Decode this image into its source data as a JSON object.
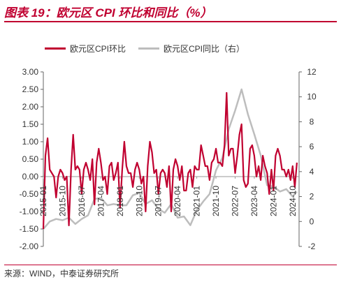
{
  "figure": {
    "title": "图表 19：欧元区 CPI 环比和同比（%）",
    "source": "来源：WIND，中泰证券研究所"
  },
  "colors": {
    "mom": "#c00030",
    "yoy": "#bdbdbd",
    "axis": "#666666",
    "title": "#c00030"
  },
  "chart_data": {
    "type": "line",
    "title": "",
    "xlabel": "",
    "ylabel": "",
    "legend_position": "top",
    "grid": false,
    "x_range": [
      "2015-01",
      "2025-01"
    ],
    "xticks": [
      "2015-01",
      "2015-10",
      "2016-07",
      "2017-04",
      "2018-01",
      "2018-10",
      "2019-07",
      "2020-04",
      "2021-01",
      "2021-10",
      "2022-07",
      "2023-04",
      "2024-01",
      "2024-10"
    ],
    "yticks_left": [
      "3.00",
      "2.50",
      "2.00",
      "1.50",
      "1.00",
      "0.50",
      "0.00",
      "-0.50",
      "-1.00",
      "-1.50",
      "-2.00"
    ],
    "yticks_right": [
      "12",
      "10",
      "8",
      "6",
      "4",
      "2",
      "0",
      "-2"
    ],
    "ylim_left": [
      -2,
      3
    ],
    "ylim_right": [
      -2,
      12
    ],
    "series": [
      {
        "name": "欧元区CPI环比",
        "axis": "left",
        "x": [
          "2015-01",
          "2015-02",
          "2015-03",
          "2015-04",
          "2015-05",
          "2015-06",
          "2015-07",
          "2015-08",
          "2015-09",
          "2015-10",
          "2015-11",
          "2015-12",
          "2016-01",
          "2016-02",
          "2016-03",
          "2016-04",
          "2016-05",
          "2016-06",
          "2016-07",
          "2016-08",
          "2016-09",
          "2016-10",
          "2016-11",
          "2016-12",
          "2017-01",
          "2017-02",
          "2017-03",
          "2017-04",
          "2017-05",
          "2017-06",
          "2017-07",
          "2017-08",
          "2017-09",
          "2017-10",
          "2017-11",
          "2017-12",
          "2018-01",
          "2018-02",
          "2018-03",
          "2018-04",
          "2018-05",
          "2018-06",
          "2018-07",
          "2018-08",
          "2018-09",
          "2018-10",
          "2018-11",
          "2018-12",
          "2019-01",
          "2019-02",
          "2019-03",
          "2019-04",
          "2019-05",
          "2019-06",
          "2019-07",
          "2019-08",
          "2019-09",
          "2019-10",
          "2019-11",
          "2019-12",
          "2020-01",
          "2020-02",
          "2020-03",
          "2020-04",
          "2020-05",
          "2020-06",
          "2020-07",
          "2020-08",
          "2020-09",
          "2020-10",
          "2020-11",
          "2020-12",
          "2021-01",
          "2021-02",
          "2021-03",
          "2021-04",
          "2021-05",
          "2021-06",
          "2021-07",
          "2021-08",
          "2021-09",
          "2021-10",
          "2021-11",
          "2021-12",
          "2022-01",
          "2022-02",
          "2022-03",
          "2022-04",
          "2022-05",
          "2022-06",
          "2022-07",
          "2022-08",
          "2022-09",
          "2022-10",
          "2022-11",
          "2022-12",
          "2023-01",
          "2023-02",
          "2023-03",
          "2023-04",
          "2023-05",
          "2023-06",
          "2023-07",
          "2023-08",
          "2023-09",
          "2023-10",
          "2023-11",
          "2023-12",
          "2024-01",
          "2024-02",
          "2024-03",
          "2024-04",
          "2024-05",
          "2024-06",
          "2024-07",
          "2024-08",
          "2024-09",
          "2024-10",
          "2024-11",
          "2024-12"
        ],
        "values": [
          -1.5,
          0.6,
          1.1,
          0.2,
          0.1,
          0.0,
          -0.6,
          0.0,
          0.2,
          0.1,
          -0.1,
          0.0,
          -1.4,
          0.2,
          1.2,
          0.2,
          0.3,
          0.2,
          -0.5,
          0.2,
          0.4,
          0.2,
          -0.1,
          0.5,
          -0.8,
          0.4,
          0.8,
          0.4,
          -0.1,
          0.0,
          -0.5,
          0.3,
          0.4,
          -0.1,
          0.1,
          0.4,
          -0.9,
          0.2,
          1.0,
          0.3,
          0.1,
          0.1,
          -0.3,
          0.2,
          0.4,
          0.2,
          -0.2,
          0.0,
          -1.0,
          0.3,
          1.0,
          0.7,
          0.1,
          0.2,
          -0.5,
          0.1,
          0.2,
          0.1,
          -0.3,
          0.3,
          -1.0,
          0.2,
          0.5,
          0.3,
          -0.1,
          0.3,
          -0.4,
          -0.4,
          0.1,
          0.2,
          -0.3,
          0.3,
          0.2,
          0.2,
          0.9,
          0.6,
          0.3,
          0.3,
          -0.1,
          0.4,
          0.5,
          0.8,
          0.4,
          0.4,
          0.3,
          0.9,
          2.4,
          0.6,
          0.8,
          0.8,
          0.1,
          0.6,
          1.2,
          1.5,
          -0.1,
          -0.3,
          -0.2,
          0.8,
          0.9,
          0.6,
          0.0,
          0.3,
          -0.1,
          0.6,
          0.3,
          0.1,
          -0.5,
          0.2,
          -0.4,
          0.6,
          0.8,
          0.6,
          0.2,
          0.2,
          0.0,
          0.2,
          -0.1,
          0.3,
          -0.3,
          0.4
        ]
      },
      {
        "name": "欧元区CPI同比（右）",
        "axis": "right",
        "x": [
          "2015-01",
          "2015-04",
          "2015-07",
          "2015-10",
          "2016-01",
          "2016-04",
          "2016-07",
          "2016-10",
          "2017-01",
          "2017-04",
          "2017-07",
          "2017-10",
          "2018-01",
          "2018-04",
          "2018-07",
          "2018-10",
          "2019-01",
          "2019-04",
          "2019-07",
          "2019-10",
          "2020-01",
          "2020-04",
          "2020-07",
          "2020-10",
          "2021-01",
          "2021-04",
          "2021-07",
          "2021-10",
          "2022-01",
          "2022-04",
          "2022-07",
          "2022-10",
          "2023-01",
          "2023-04",
          "2023-07",
          "2023-10",
          "2024-01",
          "2024-04",
          "2024-07",
          "2024-10",
          "2024-12"
        ],
        "values": [
          -0.6,
          0.0,
          0.2,
          0.1,
          0.3,
          -0.2,
          0.2,
          0.5,
          1.8,
          1.9,
          1.3,
          1.4,
          1.3,
          1.3,
          2.1,
          2.3,
          1.4,
          1.7,
          1.0,
          0.7,
          1.4,
          0.3,
          0.4,
          -0.3,
          0.9,
          1.6,
          2.2,
          4.1,
          5.1,
          7.4,
          8.9,
          10.6,
          8.6,
          7.0,
          5.3,
          2.9,
          2.8,
          2.4,
          2.6,
          2.0,
          2.4
        ]
      }
    ]
  }
}
